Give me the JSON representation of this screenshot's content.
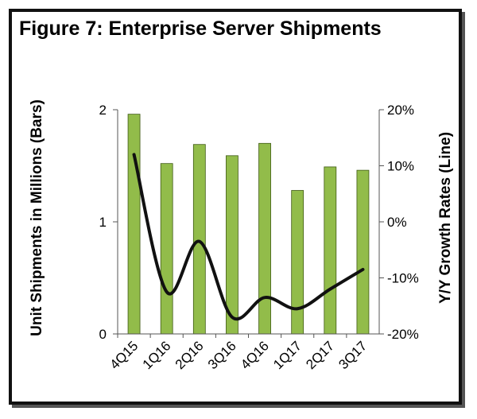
{
  "chart_data": {
    "type": "bar",
    "title": "Figure 7:  Enterprise Server Shipments",
    "categories": [
      "4Q15",
      "1Q16",
      "2Q16",
      "3Q16",
      "4Q16",
      "1Q17",
      "2Q17",
      "3Q17"
    ],
    "series": [
      {
        "type": "bar",
        "axis": "left",
        "color": "#92bc4a",
        "values": [
          1.96,
          1.52,
          1.69,
          1.59,
          1.7,
          1.28,
          1.49,
          1.46
        ]
      },
      {
        "type": "line",
        "axis": "right",
        "color": "#111111",
        "values": [
          12,
          -12.5,
          -3.5,
          -17,
          -13.5,
          -15.5,
          -12,
          -8.5
        ]
      }
    ],
    "ylabel": "Unit Shipments in Millions (Bars)",
    "y2label": "Y/Y Growth Rates (Line)",
    "ylim": [
      0,
      2
    ],
    "y2lim": [
      -20,
      20
    ],
    "yticks": [
      "0",
      "1",
      "2"
    ],
    "y2ticks": [
      "-20%",
      "-10%",
      "0%",
      "10%",
      "20%"
    ],
    "grid": false,
    "legend": "none"
  }
}
